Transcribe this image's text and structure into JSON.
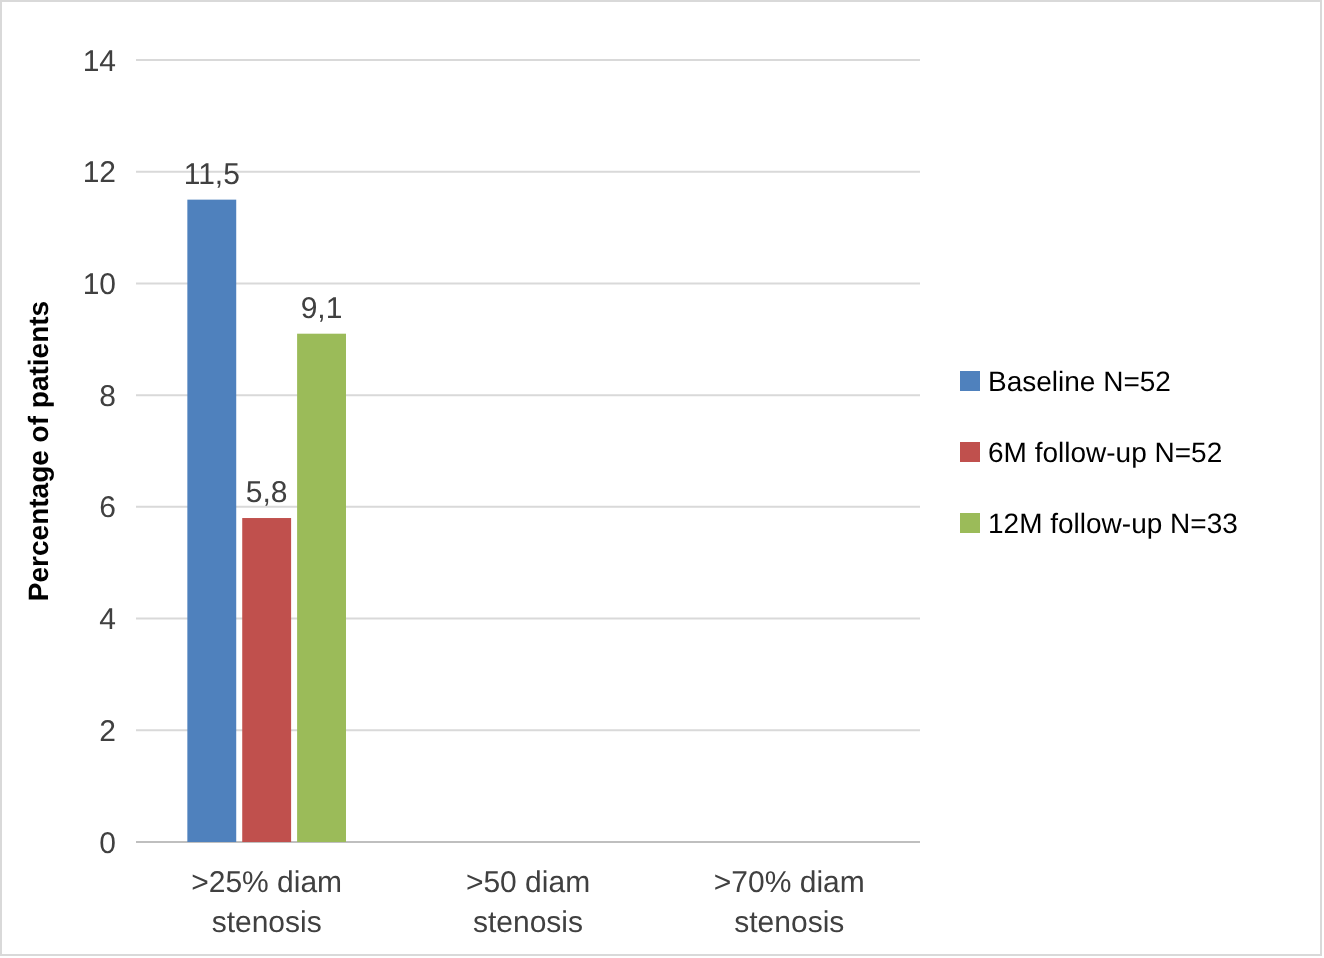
{
  "chart_data": {
    "type": "bar",
    "ylabel": "Percentage of patients",
    "categories": [
      ">25% diam stenosis",
      ">50 diam stenosis",
      ">70% diam stenosis"
    ],
    "series": [
      {
        "name": "Baseline N=52",
        "color": "#4f81bd",
        "values": [
          11.5,
          0,
          0
        ],
        "value_labels": [
          "11,5",
          null,
          null
        ]
      },
      {
        "name": "6M follow-up N=52",
        "color": "#c0504d",
        "values": [
          5.8,
          0,
          0
        ],
        "value_labels": [
          "5,8",
          null,
          null
        ]
      },
      {
        "name": "12M follow-up N=33",
        "color": "#9bbb59",
        "values": [
          9.1,
          0,
          0
        ],
        "value_labels": [
          "9,1",
          null,
          null
        ]
      }
    ],
    "ylim": [
      0,
      14
    ],
    "yticks": [
      0,
      2,
      4,
      6,
      8,
      10,
      12,
      14
    ],
    "grid": "y",
    "legend": "right"
  }
}
